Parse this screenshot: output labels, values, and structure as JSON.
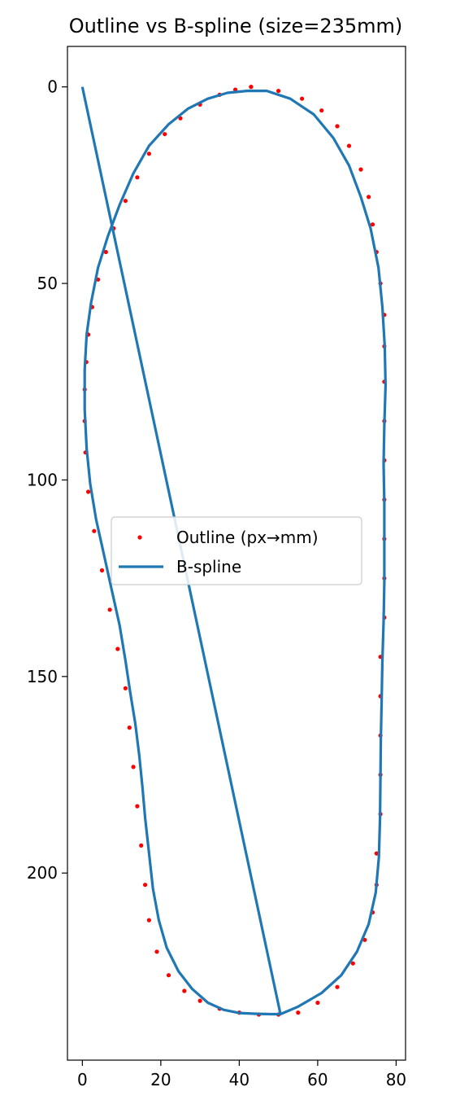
{
  "chart_data": {
    "type": "line",
    "title": "Outline vs B-spline (size=235mm)",
    "xlabel": "",
    "ylabel": "",
    "xlim": [
      -3.8,
      82.4
    ],
    "ylim": [
      247.6,
      -10.3
    ],
    "y_inverted": true,
    "x_ticks": [
      0,
      20,
      40,
      60,
      80
    ],
    "y_ticks": [
      0,
      50,
      100,
      150,
      200
    ],
    "grid": false,
    "legend": {
      "placement": "center-left",
      "entries": [
        "Outline (px→mm)",
        "B-spline"
      ]
    },
    "series": [
      {
        "name": "Outline (px→mm)",
        "kind": "scatter",
        "color": "#ff0000",
        "points": [
          [
            43,
            0
          ],
          [
            50,
            1
          ],
          [
            56,
            3
          ],
          [
            61,
            6
          ],
          [
            65,
            10
          ],
          [
            68,
            15
          ],
          [
            71,
            21
          ],
          [
            73,
            28
          ],
          [
            74,
            35
          ],
          [
            75,
            42
          ],
          [
            76,
            50
          ],
          [
            77,
            58
          ],
          [
            77,
            66
          ],
          [
            77,
            75
          ],
          [
            77,
            85
          ],
          [
            77,
            95
          ],
          [
            77,
            105
          ],
          [
            77,
            115
          ],
          [
            77,
            125
          ],
          [
            77,
            135
          ],
          [
            76,
            145
          ],
          [
            76,
            155
          ],
          [
            76,
            165
          ],
          [
            76,
            175
          ],
          [
            76,
            185
          ],
          [
            75,
            195
          ],
          [
            75,
            203
          ],
          [
            74,
            210
          ],
          [
            72,
            217
          ],
          [
            69,
            223
          ],
          [
            65,
            229
          ],
          [
            60,
            233
          ],
          [
            55,
            235.5
          ],
          [
            50,
            236
          ],
          [
            45,
            236
          ],
          [
            40,
            235.5
          ],
          [
            35,
            234.5
          ],
          [
            30,
            232.5
          ],
          [
            26,
            230
          ],
          [
            22,
            226
          ],
          [
            19,
            220
          ],
          [
            17,
            212
          ],
          [
            16,
            203
          ],
          [
            15,
            193
          ],
          [
            14,
            183
          ],
          [
            13,
            173
          ],
          [
            12,
            163
          ],
          [
            11,
            153
          ],
          [
            9,
            143
          ],
          [
            7,
            133
          ],
          [
            5,
            123
          ],
          [
            3,
            113
          ],
          [
            1.5,
            103
          ],
          [
            0.8,
            93
          ],
          [
            0.6,
            85
          ],
          [
            0.6,
            77
          ],
          [
            1,
            70
          ],
          [
            1.5,
            63
          ],
          [
            2.5,
            56
          ],
          [
            4,
            49
          ],
          [
            6,
            42
          ],
          [
            8,
            36
          ],
          [
            11,
            29
          ],
          [
            14,
            23
          ],
          [
            17,
            17
          ],
          [
            21,
            12
          ],
          [
            25,
            8
          ],
          [
            30,
            4.5
          ],
          [
            35,
            2
          ],
          [
            39,
            0.7
          ],
          [
            43,
            0
          ]
        ]
      },
      {
        "name": "B-spline",
        "kind": "line",
        "color": "#1f77b4",
        "points": [
          [
            0,
            0
          ],
          [
            50.5,
            235.9
          ],
          [
            55,
            234
          ],
          [
            61,
            230.5
          ],
          [
            66,
            226
          ],
          [
            70,
            220
          ],
          [
            73,
            213
          ],
          [
            74.8,
            205
          ],
          [
            75.6,
            196
          ],
          [
            75.9,
            186
          ],
          [
            76,
            176
          ],
          [
            76.1,
            166
          ],
          [
            76.3,
            156
          ],
          [
            76.5,
            146
          ],
          [
            76.8,
            136
          ],
          [
            77,
            126
          ],
          [
            77,
            116
          ],
          [
            77,
            106
          ],
          [
            76.8,
            96
          ],
          [
            77,
            86
          ],
          [
            77.3,
            76
          ],
          [
            77.1,
            66
          ],
          [
            76.5,
            56
          ],
          [
            75.5,
            46
          ],
          [
            73.5,
            36
          ],
          [
            71,
            28
          ],
          [
            68,
            20
          ],
          [
            64,
            13
          ],
          [
            59,
            7
          ],
          [
            53,
            3
          ],
          [
            47,
            1
          ],
          [
            42,
            1
          ],
          [
            37,
            1.5
          ],
          [
            32,
            3
          ],
          [
            27,
            5.5
          ],
          [
            22,
            9.5
          ],
          [
            17,
            15
          ],
          [
            13,
            22
          ],
          [
            9.5,
            30
          ],
          [
            6.5,
            38
          ],
          [
            4,
            46
          ],
          [
            2.2,
            55
          ],
          [
            1.1,
            63
          ],
          [
            0.6,
            72
          ],
          [
            0.6,
            82
          ],
          [
            1.1,
            92
          ],
          [
            2,
            101
          ],
          [
            3.5,
            110
          ],
          [
            5.5,
            119
          ],
          [
            7.5,
            128
          ],
          [
            9.5,
            137
          ],
          [
            11,
            146
          ],
          [
            12.2,
            154
          ],
          [
            13.5,
            162
          ],
          [
            14.5,
            170
          ],
          [
            15.3,
            178
          ],
          [
            16,
            186
          ],
          [
            17,
            195
          ],
          [
            18,
            204
          ],
          [
            19.5,
            212
          ],
          [
            21.5,
            219
          ],
          [
            24.5,
            225
          ],
          [
            28,
            229.5
          ],
          [
            32,
            233
          ],
          [
            36,
            234.8
          ],
          [
            40,
            235.6
          ],
          [
            44,
            235.8
          ],
          [
            48,
            235.9
          ],
          [
            50.5,
            235.9
          ]
        ]
      }
    ]
  }
}
